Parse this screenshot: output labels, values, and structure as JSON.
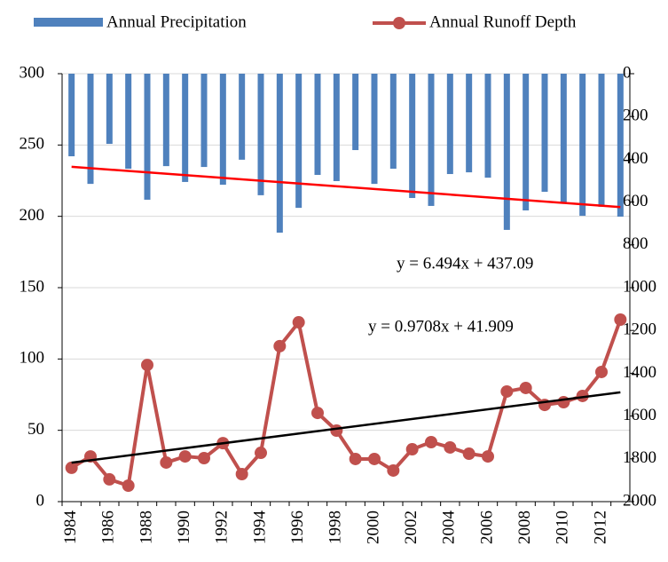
{
  "chart_data": {
    "type": "bar-line",
    "categories": [
      "1984",
      null,
      "1986",
      null,
      "1988",
      null,
      "1990",
      null,
      "1992",
      null,
      "1994",
      null,
      "1996",
      null,
      "1998",
      null,
      "2000",
      null,
      "2002",
      null,
      "2004",
      null,
      "2006",
      null,
      "2008",
      null,
      "2010",
      null,
      "2012",
      null
    ],
    "series": [
      {
        "name": "Annual Precipitation",
        "type": "bar",
        "axis": "y2",
        "color": "#4f81bd",
        "values": [
          386,
          515,
          328,
          444,
          589,
          432,
          506,
          436,
          519,
          402,
          568,
          743,
          627,
          473,
          502,
          357,
          515,
          444,
          581,
          618,
          469,
          461,
          486,
          730,
          639,
          552,
          602,
          664,
          622,
          668
        ],
        "trendline": {
          "color": "#ff0000",
          "equation": "y = 6.494x + 437.09"
        }
      },
      {
        "name": "Annual Runoff Depth",
        "type": "line",
        "color": "#c0504d",
        "values": [
          23.7,
          31.7,
          15.6,
          11.2,
          95.8,
          27.4,
          31.7,
          30.5,
          41,
          19.3,
          34.2,
          109,
          125.7,
          62.2,
          49.8,
          29.9,
          29.9,
          21.8,
          36.7,
          41.7,
          38,
          33.6,
          31.7,
          77.2,
          79.7,
          67.8,
          69.7,
          74.1,
          90.9,
          127.6
        ],
        "trendline": {
          "color": "#000000",
          "equation": "y = 0.9708x + 41.909"
        }
      }
    ],
    "ylim": [
      0,
      300
    ],
    "yticks": [
      0,
      50,
      100,
      150,
      200,
      250,
      300
    ],
    "y2lim": [
      2000,
      0
    ],
    "y2ticks": [
      0,
      200,
      400,
      600,
      800,
      1000,
      1200,
      1400,
      1600,
      1800,
      2000
    ],
    "grid": true,
    "legend": "top"
  }
}
